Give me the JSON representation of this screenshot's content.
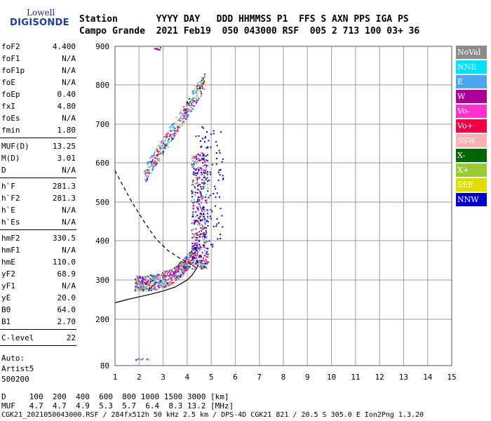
{
  "logo": {
    "top": "Lowell",
    "bottom": "DIGISONDE"
  },
  "header": {
    "line1": "Station       YYYY DAY   DDD HHMMSS P1  FFS S AXN PPS IGA PS",
    "line2": "Campo Grande  2021 Feb19  050 043000 RSF  005 2 713 100 03+ 36"
  },
  "params": {
    "g1": [
      {
        "name": "foF2",
        "value": "4.400"
      },
      {
        "name": "foF1",
        "value": "N/A"
      },
      {
        "name": "foF1p",
        "value": "N/A"
      },
      {
        "name": "foE",
        "value": "N/A"
      },
      {
        "name": "foEp",
        "value": "0.40"
      },
      {
        "name": "fxI",
        "value": "4.80"
      },
      {
        "name": "foEs",
        "value": "N/A"
      },
      {
        "name": "fmin",
        "value": "1.80"
      }
    ],
    "g2": [
      {
        "name": "MUF(D)",
        "value": "13.25"
      },
      {
        "name": "M(D)",
        "value": "3.01"
      },
      {
        "name": "D",
        "value": "N/A"
      }
    ],
    "g3": [
      {
        "name": "h`F",
        "value": "281.3"
      },
      {
        "name": "h`F2",
        "value": "281.3"
      },
      {
        "name": "h`E",
        "value": "N/A"
      },
      {
        "name": "h`Es",
        "value": "N/A"
      }
    ],
    "g4": [
      {
        "name": "hmF2",
        "value": "330.5"
      },
      {
        "name": "hmF1",
        "value": "N/A"
      },
      {
        "name": "hmE",
        "value": "110.0"
      },
      {
        "name": "yF2",
        "value": "68.9"
      },
      {
        "name": "yF1",
        "value": "N/A"
      },
      {
        "name": "yE",
        "value": "20.0"
      },
      {
        "name": "B0",
        "value": "64.0"
      },
      {
        "name": "B1",
        "value": "2.70"
      }
    ],
    "g5": [
      {
        "name": "C-level",
        "value": "22"
      }
    ],
    "auto": [
      "Auto:",
      "Artist5",
      "500200"
    ]
  },
  "legend": [
    {
      "label": "NoVal",
      "color": "#8c8c8c"
    },
    {
      "label": "NNE",
      "color": "#00e0ff"
    },
    {
      "label": "E",
      "color": "#4aa8f0"
    },
    {
      "label": "W",
      "color": "#aa0099"
    },
    {
      "label": "Vo-",
      "color": "#ff33cc"
    },
    {
      "label": "Vo+",
      "color": "#ee0044"
    },
    {
      "label": "SSW",
      "color": "#ffb0b0"
    },
    {
      "label": "X-",
      "color": "#006600"
    },
    {
      "label": "X+",
      "color": "#99cc33"
    },
    {
      "label": "SSE",
      "color": "#dddd00"
    },
    {
      "label": "NNW",
      "color": "#0000cc"
    }
  ],
  "bottom": {
    "line1": "D     100  200  400  600  800 1000 1500 3000 [km]",
    "line2": "MUF   4.7  4.7  4.9  5.3  5.7  6.4  8.3 13.2 [MHz]",
    "line3": "CGK21_2021050043000.RSF / 284fx512h 50 kHz 2.5 km / DPS-4D CGK21 821 / 20.5 S 305.0 E Ion2Png 1.3.20"
  },
  "chart_data": {
    "type": "scatter",
    "xlim": [
      1,
      15
    ],
    "ylim": [
      80,
      900
    ],
    "x_ticks": [
      1,
      2,
      3,
      4,
      5,
      6,
      7,
      8,
      9,
      10,
      11,
      12,
      13,
      14,
      15
    ],
    "y_ticks": [
      80,
      200,
      300,
      400,
      500,
      600,
      700,
      800,
      900
    ],
    "grid": true,
    "profile_solid": [
      [
        1.0,
        242
      ],
      [
        1.5,
        250
      ],
      [
        2.0,
        257
      ],
      [
        2.5,
        264
      ],
      [
        3.0,
        272
      ],
      [
        3.5,
        282
      ],
      [
        4.0,
        300
      ],
      [
        4.2,
        312
      ],
      [
        4.4,
        330
      ]
    ],
    "profile_dashed": [
      [
        1.0,
        580
      ],
      [
        1.3,
        545
      ],
      [
        1.7,
        500
      ],
      [
        2.2,
        450
      ],
      [
        2.7,
        405
      ],
      [
        3.2,
        375
      ],
      [
        3.7,
        355
      ],
      [
        4.2,
        338
      ],
      [
        4.4,
        330
      ]
    ]
  }
}
